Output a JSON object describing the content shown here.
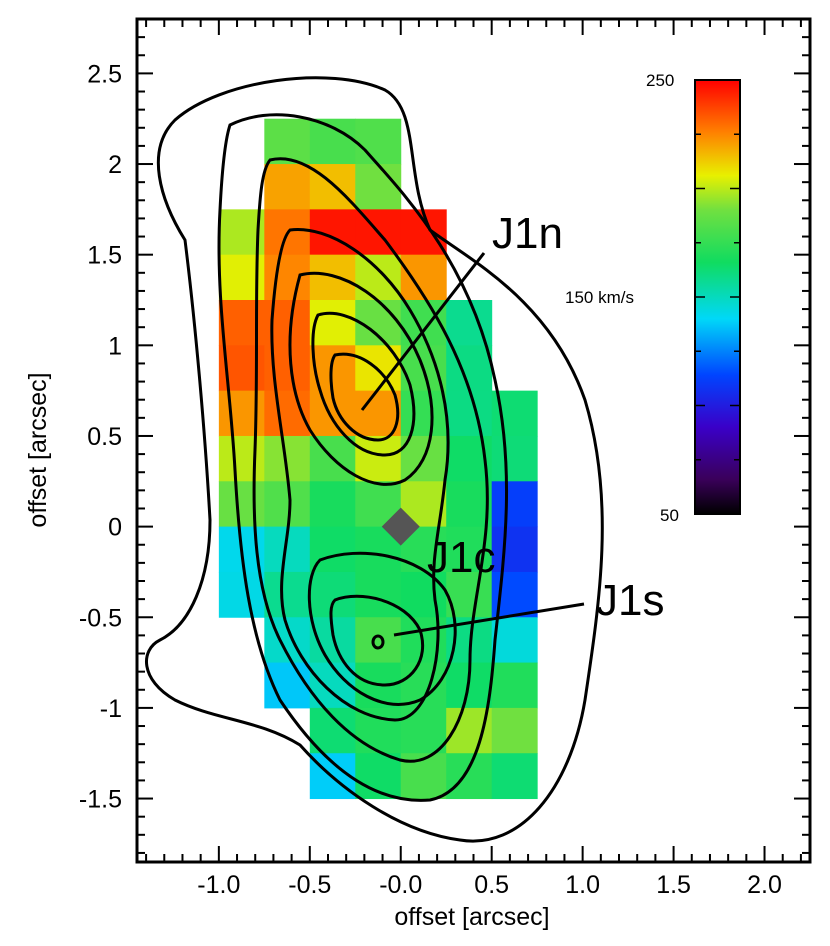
{
  "chart_data": {
    "type": "heatmap",
    "title": "",
    "xlabel": "offset [arcsec]",
    "ylabel": "offset [arcsec]",
    "xlim": [
      -1.45,
      2.25
    ],
    "ylim": [
      -1.85,
      2.8
    ],
    "xticks": [
      -1.0,
      -0.5,
      0.0,
      0.5,
      1.0,
      1.5,
      2.0
    ],
    "xtick_labels": [
      "-1.0",
      "-0.5",
      "-0.0",
      "0.5",
      "1.0",
      "1.5",
      "2.0"
    ],
    "yticks": [
      -1.5,
      -1,
      -0.5,
      0,
      0.5,
      1,
      1.5,
      2,
      2.5
    ],
    "ytick_labels": [
      "-1.5",
      "-1",
      "-0.5",
      "0",
      "0.5",
      "1",
      "1.5",
      "2",
      "2.5"
    ],
    "pixel_size_arcsec": 0.25,
    "value_unit": "km/s",
    "colorbar": {
      "min": 50,
      "max": 250,
      "labels": [
        {
          "value": 250,
          "text": "250"
        },
        {
          "value": 150,
          "text": "150 km/s"
        },
        {
          "value": 50,
          "text": "50"
        }
      ]
    },
    "cells": [
      {
        "x": -0.625,
        "y": 2.125,
        "v": 185
      },
      {
        "x": -0.375,
        "y": 2.125,
        "v": 180
      },
      {
        "x": -0.125,
        "y": 2.125,
        "v": 182
      },
      {
        "x": -0.625,
        "y": 1.875,
        "v": 220
      },
      {
        "x": -0.375,
        "y": 1.875,
        "v": 215
      },
      {
        "x": -0.125,
        "y": 1.875,
        "v": 190
      },
      {
        "x": -0.875,
        "y": 1.625,
        "v": 198
      },
      {
        "x": -0.625,
        "y": 1.625,
        "v": 228
      },
      {
        "x": -0.375,
        "y": 1.625,
        "v": 246
      },
      {
        "x": -0.125,
        "y": 1.625,
        "v": 246
      },
      {
        "x": 0.125,
        "y": 1.625,
        "v": 246
      },
      {
        "x": -0.875,
        "y": 1.375,
        "v": 205
      },
      {
        "x": -0.625,
        "y": 1.375,
        "v": 225
      },
      {
        "x": -0.375,
        "y": 1.375,
        "v": 215
      },
      {
        "x": -0.125,
        "y": 1.375,
        "v": 200
      },
      {
        "x": 0.125,
        "y": 1.375,
        "v": 222
      },
      {
        "x": -0.875,
        "y": 1.125,
        "v": 232
      },
      {
        "x": -0.625,
        "y": 1.125,
        "v": 232
      },
      {
        "x": -0.375,
        "y": 1.125,
        "v": 205
      },
      {
        "x": -0.125,
        "y": 1.125,
        "v": 188
      },
      {
        "x": 0.125,
        "y": 1.125,
        "v": 178
      },
      {
        "x": 0.375,
        "y": 1.125,
        "v": 158
      },
      {
        "x": -0.875,
        "y": 0.875,
        "v": 234
      },
      {
        "x": -0.625,
        "y": 0.875,
        "v": 232
      },
      {
        "x": -0.375,
        "y": 0.875,
        "v": 222
      },
      {
        "x": -0.125,
        "y": 0.875,
        "v": 208
      },
      {
        "x": 0.125,
        "y": 0.875,
        "v": 180
      },
      {
        "x": 0.375,
        "y": 0.875,
        "v": 160
      },
      {
        "x": -0.875,
        "y": 0.625,
        "v": 222
      },
      {
        "x": -0.625,
        "y": 0.625,
        "v": 230
      },
      {
        "x": -0.375,
        "y": 0.625,
        "v": 222
      },
      {
        "x": -0.125,
        "y": 0.625,
        "v": 222
      },
      {
        "x": 0.125,
        "y": 0.625,
        "v": 175
      },
      {
        "x": 0.375,
        "y": 0.625,
        "v": 160
      },
      {
        "x": 0.625,
        "y": 0.625,
        "v": 163
      },
      {
        "x": -0.875,
        "y": 0.375,
        "v": 200
      },
      {
        "x": -0.625,
        "y": 0.375,
        "v": 193
      },
      {
        "x": -0.375,
        "y": 0.375,
        "v": 180
      },
      {
        "x": -0.125,
        "y": 0.375,
        "v": 202
      },
      {
        "x": 0.125,
        "y": 0.375,
        "v": 188
      },
      {
        "x": 0.375,
        "y": 0.375,
        "v": 165
      },
      {
        "x": 0.625,
        "y": 0.375,
        "v": 162
      },
      {
        "x": -0.875,
        "y": 0.125,
        "v": 188
      },
      {
        "x": -0.625,
        "y": 0.125,
        "v": 182
      },
      {
        "x": -0.375,
        "y": 0.125,
        "v": 168
      },
      {
        "x": -0.125,
        "y": 0.125,
        "v": 178
      },
      {
        "x": 0.125,
        "y": 0.125,
        "v": 198
      },
      {
        "x": 0.375,
        "y": 0.125,
        "v": 168
      },
      {
        "x": 0.625,
        "y": 0.125,
        "v": 112
      },
      {
        "x": -0.875,
        "y": -0.125,
        "v": 142
      },
      {
        "x": -0.625,
        "y": -0.125,
        "v": 150
      },
      {
        "x": -0.375,
        "y": -0.125,
        "v": 165
      },
      {
        "x": -0.125,
        "y": -0.125,
        "v": 168
      },
      {
        "x": 0.125,
        "y": -0.125,
        "v": 172
      },
      {
        "x": 0.375,
        "y": -0.125,
        "v": 170
      },
      {
        "x": 0.625,
        "y": -0.125,
        "v": 108
      },
      {
        "x": -0.875,
        "y": -0.375,
        "v": 143
      },
      {
        "x": -0.625,
        "y": -0.375,
        "v": 158
      },
      {
        "x": -0.375,
        "y": -0.375,
        "v": 162
      },
      {
        "x": -0.125,
        "y": -0.375,
        "v": 168
      },
      {
        "x": 0.125,
        "y": -0.375,
        "v": 166
      },
      {
        "x": 0.375,
        "y": -0.375,
        "v": 176
      },
      {
        "x": 0.625,
        "y": -0.375,
        "v": 115
      },
      {
        "x": -0.625,
        "y": -0.625,
        "v": 148
      },
      {
        "x": -0.375,
        "y": -0.625,
        "v": 155
      },
      {
        "x": -0.125,
        "y": -0.625,
        "v": 180
      },
      {
        "x": 0.125,
        "y": -0.625,
        "v": 170
      },
      {
        "x": 0.375,
        "y": -0.625,
        "v": 160
      },
      {
        "x": 0.625,
        "y": -0.625,
        "v": 145
      },
      {
        "x": -0.625,
        "y": -0.875,
        "v": 137
      },
      {
        "x": -0.375,
        "y": -0.875,
        "v": 150
      },
      {
        "x": -0.125,
        "y": -0.875,
        "v": 168
      },
      {
        "x": 0.125,
        "y": -0.875,
        "v": 172
      },
      {
        "x": 0.375,
        "y": -0.875,
        "v": 165
      },
      {
        "x": 0.625,
        "y": -0.875,
        "v": 170
      },
      {
        "x": -0.375,
        "y": -1.125,
        "v": 163
      },
      {
        "x": -0.125,
        "y": -1.125,
        "v": 170
      },
      {
        "x": 0.125,
        "y": -1.125,
        "v": 172
      },
      {
        "x": 0.375,
        "y": -1.125,
        "v": 196
      },
      {
        "x": 0.625,
        "y": -1.125,
        "v": 190
      },
      {
        "x": -0.375,
        "y": -1.375,
        "v": 138
      },
      {
        "x": -0.125,
        "y": -1.375,
        "v": 165
      },
      {
        "x": 0.125,
        "y": -1.375,
        "v": 180
      },
      {
        "x": 0.375,
        "y": -1.375,
        "v": 172
      },
      {
        "x": 0.625,
        "y": -1.375,
        "v": 163
      }
    ],
    "annotations": [
      {
        "text": "J1n",
        "x": -0.2,
        "y": 0.72
      },
      {
        "text": "J1c",
        "x": 0.0,
        "y": -0.02
      },
      {
        "text": "J1s",
        "x": -0.1,
        "y": -0.62
      }
    ],
    "markers": [
      {
        "shape": "diamond",
        "x": 0.0,
        "y": 0.0,
        "color": "#555555"
      }
    ]
  }
}
